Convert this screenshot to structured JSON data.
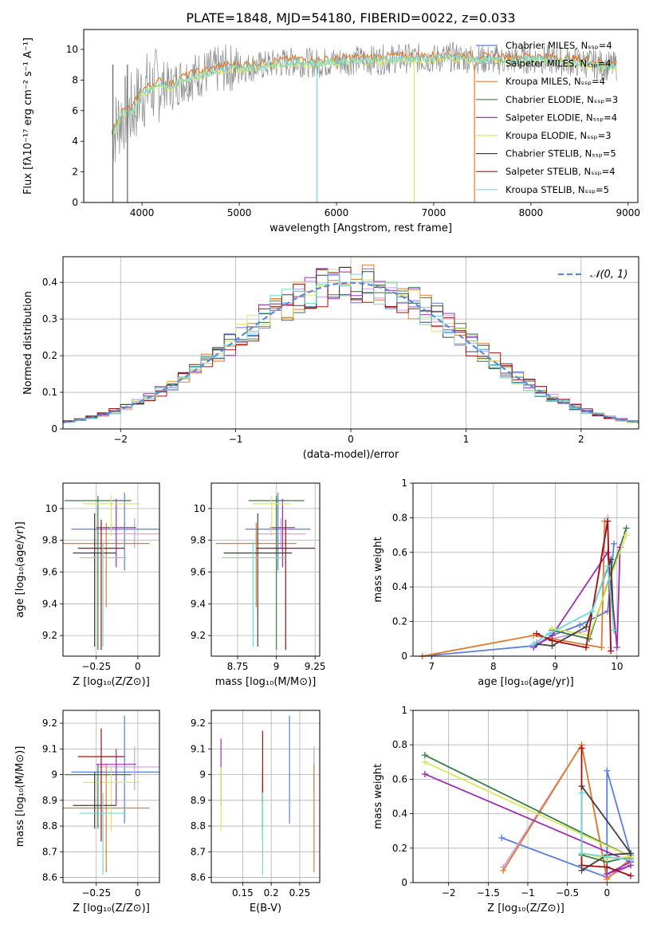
{
  "figure_title": "PLATE=1848, MJD=54180, FIBERID=0022, z=0.033",
  "series_colors": [
    "#5b7fd6",
    "#c8a0e0",
    "#e07a2f",
    "#3c7a4a",
    "#9b30b0",
    "#d8e860",
    "#404040",
    "#a01010",
    "#70d8d8"
  ],
  "spectrum_legend": [
    "Chabrier MILES, Nₛₛₚ=4",
    "Salpeter MILES, Nₛₛₚ=4",
    "Kroupa MILES, Nₛₛₚ=4",
    "Chabrier ELODIE, Nₛₛₚ=3",
    "Salpeter ELODIE, Nₛₛₚ=4",
    "Kroupa ELODIE, Nₛₛₚ=3",
    "Chabrier STELIB, Nₛₛₚ=5",
    "Salpeter STELIB, Nₛₛₚ=4",
    "Kroupa STELIB, Nₛₛₚ=5"
  ],
  "hist_legend": "𝒩(0, 1)",
  "chart_data": [
    {
      "type": "line",
      "id": "spectrum",
      "xlabel": "wavelength [Angstrom, rest frame]",
      "ylabel": "Flux [fλ10⁻¹⁷ erg cm⁻² s⁻¹ A⁻¹]",
      "xlim": [
        3400,
        9100
      ],
      "ylim": [
        0,
        11.3
      ],
      "xticks": [
        4000,
        5000,
        6000,
        7000,
        8000,
        9000
      ],
      "yticks": [
        0,
        2,
        4,
        6,
        8,
        10
      ],
      "grid": false,
      "legend_position": "upper right",
      "data_x": [
        3700,
        3800,
        3900,
        4000,
        4100,
        4200,
        4300,
        4400,
        4500,
        4600,
        4700,
        4800,
        4900,
        5000,
        5200,
        5400,
        5600,
        5800,
        6000,
        6200,
        6400,
        6600,
        6800,
        7000,
        7200,
        7400,
        7600,
        7800,
        8000,
        8200,
        8400,
        8600,
        8800
      ],
      "data_y": [
        4.5,
        5.8,
        6.0,
        7.2,
        7.5,
        7.8,
        7.5,
        8.0,
        8.2,
        8.4,
        8.5,
        8.7,
        8.8,
        8.8,
        8.9,
        9.1,
        9.2,
        9.1,
        9.2,
        9.3,
        9.3,
        9.4,
        9.4,
        9.4,
        9.5,
        9.4,
        9.3,
        9.3,
        9.4,
        9.3,
        9.2,
        9.1,
        8.9
      ]
    },
    {
      "type": "area",
      "id": "residual-histogram",
      "xlabel": "(data-model)/error",
      "ylabel": "Normed distribution",
      "xlim": [
        -2.5,
        2.5
      ],
      "ylim": [
        0,
        0.47
      ],
      "xticks": [
        -2,
        -1,
        0,
        1,
        2
      ],
      "yticks": [
        0.0,
        0.1,
        0.2,
        0.3,
        0.4
      ],
      "grid": true,
      "legend_position": "upper right"
    },
    {
      "type": "scatter",
      "id": "age-vs-Z",
      "xlabel": "Z [log₁₀(Z/Z⊙)]",
      "ylabel": "age  [log₁₀(age/yr)]",
      "xlim": [
        -0.45,
        0.13
      ],
      "ylim": [
        9.07,
        10.16
      ],
      "xticks": [
        -0.25,
        0.0
      ],
      "yticks": [
        9.2,
        9.4,
        9.6,
        9.8,
        10.0
      ],
      "grid": true,
      "points": [
        {
          "x": -0.08,
          "y": 9.87,
          "xerr": 0.32,
          "yerr_lo": 0.26,
          "yerr_hi": 0.23
        },
        {
          "x": -0.02,
          "y": 9.84,
          "xerr": 0.22,
          "yerr_lo": 0.09,
          "yerr_hi": 0.1
        },
        {
          "x": -0.19,
          "y": 9.78,
          "xerr": 0.26,
          "yerr_lo": 0.4,
          "yerr_hi": 0.13
        },
        {
          "x": -0.24,
          "y": 10.05,
          "xerr": 0.2,
          "yerr_lo": 0.94,
          "yerr_hi": 0.03
        },
        {
          "x": -0.13,
          "y": 9.88,
          "xerr": 0.12,
          "yerr_lo": 0.25,
          "yerr_hi": 0.18
        },
        {
          "x": -0.16,
          "y": 10.03,
          "xerr": 0.17,
          "yerr_lo": 0.2,
          "yerr_hi": 0.05
        },
        {
          "x": -0.26,
          "y": 9.72,
          "xerr": 0.13,
          "yerr_lo": 0.59,
          "yerr_hi": 0.25
        },
        {
          "x": -0.22,
          "y": 9.75,
          "xerr": 0.14,
          "yerr_lo": 0.64,
          "yerr_hi": 0.18
        },
        {
          "x": -0.21,
          "y": 9.69,
          "xerr": 0.14,
          "yerr_lo": 0.56,
          "yerr_hi": 0.1
        }
      ]
    },
    {
      "type": "scatter",
      "id": "age-vs-mass",
      "xlabel": "mass [log₁₀(M/M⊙)]",
      "ylabel": "",
      "xlim": [
        8.58,
        9.28
      ],
      "ylim": [
        9.07,
        10.16
      ],
      "xticks": [
        8.75,
        9.0,
        9.25
      ],
      "yticks": [
        9.2,
        9.4,
        9.6,
        9.8,
        10.0
      ],
      "grid": true,
      "points": [
        {
          "x": 9.01,
          "y": 9.87,
          "xerr": 0.21,
          "yerr_lo": 0.26,
          "yerr_hi": 0.23
        },
        {
          "x": 9.03,
          "y": 9.84,
          "xerr": 0.16,
          "yerr_lo": 0.09,
          "yerr_hi": 0.1
        },
        {
          "x": 8.87,
          "y": 9.78,
          "xerr": 0.26,
          "yerr_lo": 0.4,
          "yerr_hi": 0.13
        },
        {
          "x": 9.0,
          "y": 10.05,
          "xerr": 0.18,
          "yerr_lo": 0.94,
          "yerr_hi": 0.03
        },
        {
          "x": 9.04,
          "y": 9.88,
          "xerr": 0.08,
          "yerr_lo": 0.25,
          "yerr_hi": 0.18
        },
        {
          "x": 8.97,
          "y": 10.03,
          "xerr": 0.12,
          "yerr_lo": 0.2,
          "yerr_hi": 0.05
        },
        {
          "x": 8.88,
          "y": 9.72,
          "xerr": 0.22,
          "yerr_lo": 0.59,
          "yerr_hi": 0.25
        },
        {
          "x": 9.06,
          "y": 9.75,
          "xerr": 0.19,
          "yerr_lo": 0.64,
          "yerr_hi": 0.18
        },
        {
          "x": 8.85,
          "y": 9.69,
          "xerr": 0.2,
          "yerr_lo": 0.56,
          "yerr_hi": 0.1
        }
      ]
    },
    {
      "type": "line",
      "id": "massweight-vs-age",
      "xlabel": "age  [log₁₀(age/yr)]",
      "ylabel": "mass weight",
      "xlim": [
        6.7,
        10.35
      ],
      "ylim": [
        0,
        1.0
      ],
      "xticks": [
        7,
        8,
        9,
        10
      ],
      "yticks": [
        0.0,
        0.2,
        0.4,
        0.6,
        0.8,
        1.0
      ],
      "grid": true,
      "series": [
        {
          "x": [
            6.85,
            8.65,
            8.95,
            9.4,
            9.85,
            9.95
          ],
          "y": [
            0.0,
            0.06,
            0.12,
            0.18,
            0.26,
            0.65
          ]
        },
        {
          "x": [
            8.7,
            8.95,
            9.55,
            9.85,
            9.9
          ],
          "y": [
            0.08,
            0.1,
            0.15,
            0.8,
            0.05
          ]
        },
        {
          "x": [
            6.85,
            8.65,
            8.95,
            9.75,
            9.8
          ],
          "y": [
            0.0,
            0.12,
            0.1,
            0.05,
            0.78
          ]
        },
        {
          "x": [
            8.95,
            9.55,
            10.15
          ],
          "y": [
            0.15,
            0.1,
            0.74
          ]
        },
        {
          "x": [
            8.65,
            8.95,
            9.85,
            10.0,
            10.05
          ],
          "y": [
            0.05,
            0.12,
            0.6,
            0.05,
            0.63
          ]
        },
        {
          "x": [
            8.95,
            9.55,
            10.15
          ],
          "y": [
            0.16,
            0.12,
            0.7
          ]
        },
        {
          "x": [
            8.7,
            8.95,
            9.5,
            9.9,
            9.95
          ],
          "y": [
            0.07,
            0.06,
            0.17,
            0.56,
            0.15
          ]
        },
        {
          "x": [
            8.7,
            8.95,
            9.5,
            9.85,
            9.9
          ],
          "y": [
            0.13,
            0.09,
            0.05,
            0.78,
            0.03
          ]
        },
        {
          "x": [
            8.65,
            8.9,
            9.6,
            9.85,
            9.95
          ],
          "y": [
            0.07,
            0.13,
            0.26,
            0.52,
            0.15
          ]
        }
      ]
    },
    {
      "type": "scatter",
      "id": "mass-vs-Z",
      "xlabel": "Z [log₁₀(Z/Z⊙)]",
      "ylabel": "mass [log₁₀(M/M⊙)]",
      "xlim": [
        -0.45,
        0.13
      ],
      "ylim": [
        8.58,
        9.25
      ],
      "xticks": [
        -0.25,
        0.0
      ],
      "yticks": [
        8.6,
        8.7,
        8.8,
        8.9,
        9.0,
        9.1,
        9.2
      ],
      "grid": true,
      "points": [
        {
          "x": -0.08,
          "y": 9.01,
          "xerr": 0.32,
          "yerr_lo": 0.2,
          "yerr_hi": 0.22
        },
        {
          "x": -0.02,
          "y": 9.03,
          "xerr": 0.22,
          "yerr_lo": 0.09,
          "yerr_hi": 0.08
        },
        {
          "x": -0.19,
          "y": 8.87,
          "xerr": 0.26,
          "yerr_lo": 0.25,
          "yerr_hi": 0.17
        },
        {
          "x": -0.24,
          "y": 9.0,
          "xerr": 0.2,
          "yerr_lo": 0.21,
          "yerr_hi": 0.04
        },
        {
          "x": -0.13,
          "y": 9.04,
          "xerr": 0.12,
          "yerr_lo": 0.16,
          "yerr_hi": 0.06
        },
        {
          "x": -0.16,
          "y": 8.97,
          "xerr": 0.17,
          "yerr_lo": 0.19,
          "yerr_hi": 0.06
        },
        {
          "x": -0.26,
          "y": 8.88,
          "xerr": 0.13,
          "yerr_lo": 0.09,
          "yerr_hi": 0.13
        },
        {
          "x": -0.22,
          "y": 9.07,
          "xerr": 0.14,
          "yerr_lo": 0.33,
          "yerr_hi": 0.11
        },
        {
          "x": -0.21,
          "y": 8.85,
          "xerr": 0.14,
          "yerr_lo": 0.24,
          "yerr_hi": 0.08
        }
      ]
    },
    {
      "type": "scatter",
      "id": "mass-vs-ebv",
      "xlabel": "E(B-V)",
      "ylabel": "",
      "xlim": [
        0.095,
        0.285
      ],
      "ylim": [
        8.58,
        9.25
      ],
      "xticks": [
        0.15,
        0.2,
        0.25
      ],
      "yticks": [
        8.6,
        8.7,
        8.8,
        8.9,
        9.0,
        9.1,
        9.2
      ],
      "grid": true,
      "points": [
        {
          "x": 0.232,
          "y": 9.01,
          "yerr_lo": 0.2,
          "yerr_hi": 0.22
        },
        {
          "x": 0.275,
          "y": 9.03,
          "yerr_lo": 0.09,
          "yerr_hi": 0.08
        },
        {
          "x": 0.275,
          "y": 8.87,
          "yerr_lo": 0.25,
          "yerr_hi": 0.17
        },
        {
          "x": 0.185,
          "y": 8.93,
          "yerr_lo": 0.19,
          "yerr_hi": 0.04
        },
        {
          "x": 0.112,
          "y": 9.04,
          "yerr_lo": 0.16,
          "yerr_hi": 0.1
        },
        {
          "x": 0.112,
          "y": 8.97,
          "yerr_lo": 0.19,
          "yerr_hi": 0.06
        },
        {
          "x": 0.185,
          "y": 8.88,
          "yerr_lo": 0.09,
          "yerr_hi": 0.13
        },
        {
          "x": 0.185,
          "y": 9.07,
          "yerr_lo": 0.18,
          "yerr_hi": 0.1
        },
        {
          "x": 0.185,
          "y": 8.85,
          "yerr_lo": 0.24,
          "yerr_hi": 0.08
        }
      ]
    },
    {
      "type": "line",
      "id": "massweight-vs-Z",
      "xlabel": "Z [log₁₀(Z/Z⊙)]",
      "ylabel": "mass weight",
      "xlim": [
        -2.45,
        0.4
      ],
      "ylim": [
        0,
        1.0
      ],
      "xticks": [
        -2.0,
        -1.5,
        -1.0,
        -0.5,
        0.0
      ],
      "yticks": [
        0.0,
        0.2,
        0.4,
        0.6,
        0.8,
        1.0
      ],
      "grid": true,
      "series": [
        {
          "x": [
            -1.33,
            0.0,
            0.0,
            0.3
          ],
          "y": [
            0.26,
            0.03,
            0.65,
            0.16
          ]
        },
        {
          "x": [
            -1.31,
            -0.32,
            0.0,
            0.3
          ],
          "y": [
            0.09,
            0.8,
            0.03,
            0.1
          ]
        },
        {
          "x": [
            -1.31,
            -0.32,
            0.0,
            0.3
          ],
          "y": [
            0.07,
            0.8,
            0.02,
            0.14
          ]
        },
        {
          "x": [
            -2.3,
            0.3,
            0.0,
            -0.32
          ],
          "y": [
            0.74,
            0.15,
            0.12,
            0.16
          ]
        },
        {
          "x": [
            -2.3,
            0.3,
            0.0,
            0.3
          ],
          "y": [
            0.63,
            0.12,
            0.05,
            0.1
          ]
        },
        {
          "x": [
            -2.3,
            0.3,
            0.0,
            -0.32
          ],
          "y": [
            0.7,
            0.15,
            0.14,
            0.17
          ]
        },
        {
          "x": [
            -0.32,
            0.3,
            0.0,
            -0.32
          ],
          "y": [
            0.56,
            0.17,
            0.16,
            0.07
          ]
        },
        {
          "x": [
            -0.32,
            -0.32,
            0.0,
            0.3
          ],
          "y": [
            0.78,
            0.1,
            0.09,
            0.04
          ]
        },
        {
          "x": [
            -0.32,
            -0.32,
            0.0,
            0.3
          ],
          "y": [
            0.52,
            0.17,
            0.15,
            0.13
          ]
        }
      ]
    }
  ]
}
